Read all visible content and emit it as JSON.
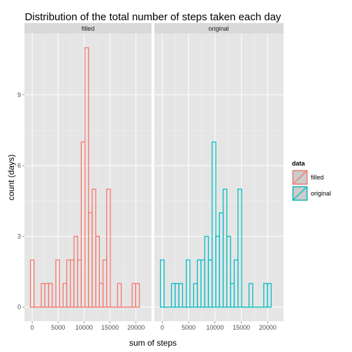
{
  "chart_data": {
    "type": "bar",
    "title": "Distribution of the total number of steps taken each day",
    "xlabel": "sum of steps",
    "ylabel": "count (days)",
    "xlim": [
      -1500,
      23000
    ],
    "ylim": [
      -0.6,
      11.6
    ],
    "x_ticks": [
      0,
      5000,
      10000,
      15000,
      20000
    ],
    "x_tick_labels": [
      "0",
      "5000",
      "10000",
      "15000",
      "20000"
    ],
    "y_ticks": [
      0,
      3,
      6,
      9
    ],
    "y_tick_labels": [
      "0",
      "3",
      "6",
      "9"
    ],
    "grid": true,
    "legend_position": "right",
    "legend_title": "data",
    "bin_width": 700,
    "colors": {
      "filled": "#F8766D",
      "original": "#00BFC4"
    },
    "panels": [
      {
        "name": "filled",
        "color": "filled",
        "bins": [
          {
            "x": 0,
            "count": 2
          },
          {
            "x": 700,
            "count": 0
          },
          {
            "x": 1400,
            "count": 0
          },
          {
            "x": 2100,
            "count": 1
          },
          {
            "x": 2800,
            "count": 1
          },
          {
            "x": 3500,
            "count": 1
          },
          {
            "x": 4200,
            "count": 0
          },
          {
            "x": 4900,
            "count": 2
          },
          {
            "x": 5600,
            "count": 0
          },
          {
            "x": 6300,
            "count": 1
          },
          {
            "x": 7000,
            "count": 2
          },
          {
            "x": 7700,
            "count": 2
          },
          {
            "x": 8400,
            "count": 3
          },
          {
            "x": 9100,
            "count": 2
          },
          {
            "x": 9800,
            "count": 7
          },
          {
            "x": 10500,
            "count": 11
          },
          {
            "x": 11200,
            "count": 4
          },
          {
            "x": 11900,
            "count": 5
          },
          {
            "x": 12600,
            "count": 3
          },
          {
            "x": 13300,
            "count": 1
          },
          {
            "x": 14000,
            "count": 2
          },
          {
            "x": 14700,
            "count": 5
          },
          {
            "x": 15400,
            "count": 0
          },
          {
            "x": 16100,
            "count": 0
          },
          {
            "x": 16800,
            "count": 1
          },
          {
            "x": 17500,
            "count": 0
          },
          {
            "x": 18200,
            "count": 0
          },
          {
            "x": 18900,
            "count": 0
          },
          {
            "x": 19600,
            "count": 1
          },
          {
            "x": 20300,
            "count": 1
          }
        ]
      },
      {
        "name": "original",
        "color": "original",
        "bins": [
          {
            "x": 0,
            "count": 2
          },
          {
            "x": 700,
            "count": 0
          },
          {
            "x": 1400,
            "count": 0
          },
          {
            "x": 2100,
            "count": 1
          },
          {
            "x": 2800,
            "count": 1
          },
          {
            "x": 3500,
            "count": 1
          },
          {
            "x": 4200,
            "count": 0
          },
          {
            "x": 4900,
            "count": 2
          },
          {
            "x": 5600,
            "count": 0
          },
          {
            "x": 6300,
            "count": 1
          },
          {
            "x": 7000,
            "count": 2
          },
          {
            "x": 7700,
            "count": 2
          },
          {
            "x": 8400,
            "count": 3
          },
          {
            "x": 9100,
            "count": 2
          },
          {
            "x": 9800,
            "count": 7
          },
          {
            "x": 10500,
            "count": 3
          },
          {
            "x": 11200,
            "count": 4
          },
          {
            "x": 11900,
            "count": 5
          },
          {
            "x": 12600,
            "count": 3
          },
          {
            "x": 13300,
            "count": 1
          },
          {
            "x": 14000,
            "count": 2
          },
          {
            "x": 14700,
            "count": 5
          },
          {
            "x": 15400,
            "count": 0
          },
          {
            "x": 16100,
            "count": 0
          },
          {
            "x": 16800,
            "count": 1
          },
          {
            "x": 17500,
            "count": 0
          },
          {
            "x": 18200,
            "count": 0
          },
          {
            "x": 18900,
            "count": 0
          },
          {
            "x": 19600,
            "count": 1
          },
          {
            "x": 20300,
            "count": 1
          }
        ]
      }
    ],
    "legend": [
      {
        "label": "filled",
        "color": "filled"
      },
      {
        "label": "original",
        "color": "original"
      }
    ]
  }
}
